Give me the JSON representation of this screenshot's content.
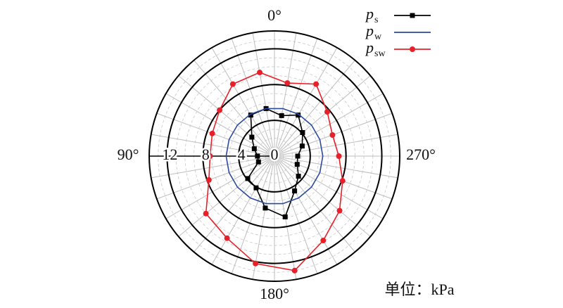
{
  "chart_data": {
    "type": "polar",
    "theta": [
      10,
      30,
      50,
      70,
      90,
      110,
      130,
      150,
      170,
      190,
      210,
      230,
      250,
      270,
      290,
      310,
      330,
      350
    ],
    "series": [
      {
        "name": "p",
        "subscript": "s",
        "color": "#000000",
        "marker": "square",
        "values": [
          5.4,
          5.3,
          3.3,
          2.4,
          1.9,
          1.9,
          3.9,
          4.1,
          5.9,
          6.9,
          4.5,
          3.5,
          2.7,
          2.6,
          3.3,
          4.1,
          5.3,
          4.6
        ]
      },
      {
        "name": "p",
        "subscript": "w",
        "color": "#2a4aa0",
        "marker": "none",
        "values": [
          5.4,
          5.4,
          5.4,
          5.4,
          5.4,
          5.4,
          5.4,
          5.4,
          5.4,
          5.4,
          5.4,
          5.4,
          5.4,
          5.4,
          5.4,
          5.4,
          5.4,
          5.4
        ]
      },
      {
        "name": "p",
        "subscript": "sw",
        "color": "#e8202a",
        "marker": "circle",
        "values": [
          9.5,
          9.3,
          8.0,
          7.4,
          7.2,
          7.8,
          10.0,
          10.6,
          12.2,
          13.0,
          10.9,
          9.5,
          8.1,
          7.2,
          6.9,
          7.7,
          9.3,
          8.3
        ]
      }
    ],
    "rlim": [
      0,
      14
    ],
    "rticks": [
      0,
      4,
      8,
      12
    ],
    "angle_ticks": [
      {
        "value": 0,
        "label": "0°"
      },
      {
        "value": 90,
        "label": "90°"
      },
      {
        "value": 180,
        "label": "180°"
      },
      {
        "value": 270,
        "label": "270°"
      }
    ],
    "direction": "counterclockwise",
    "annotation": "单位：kPa"
  }
}
